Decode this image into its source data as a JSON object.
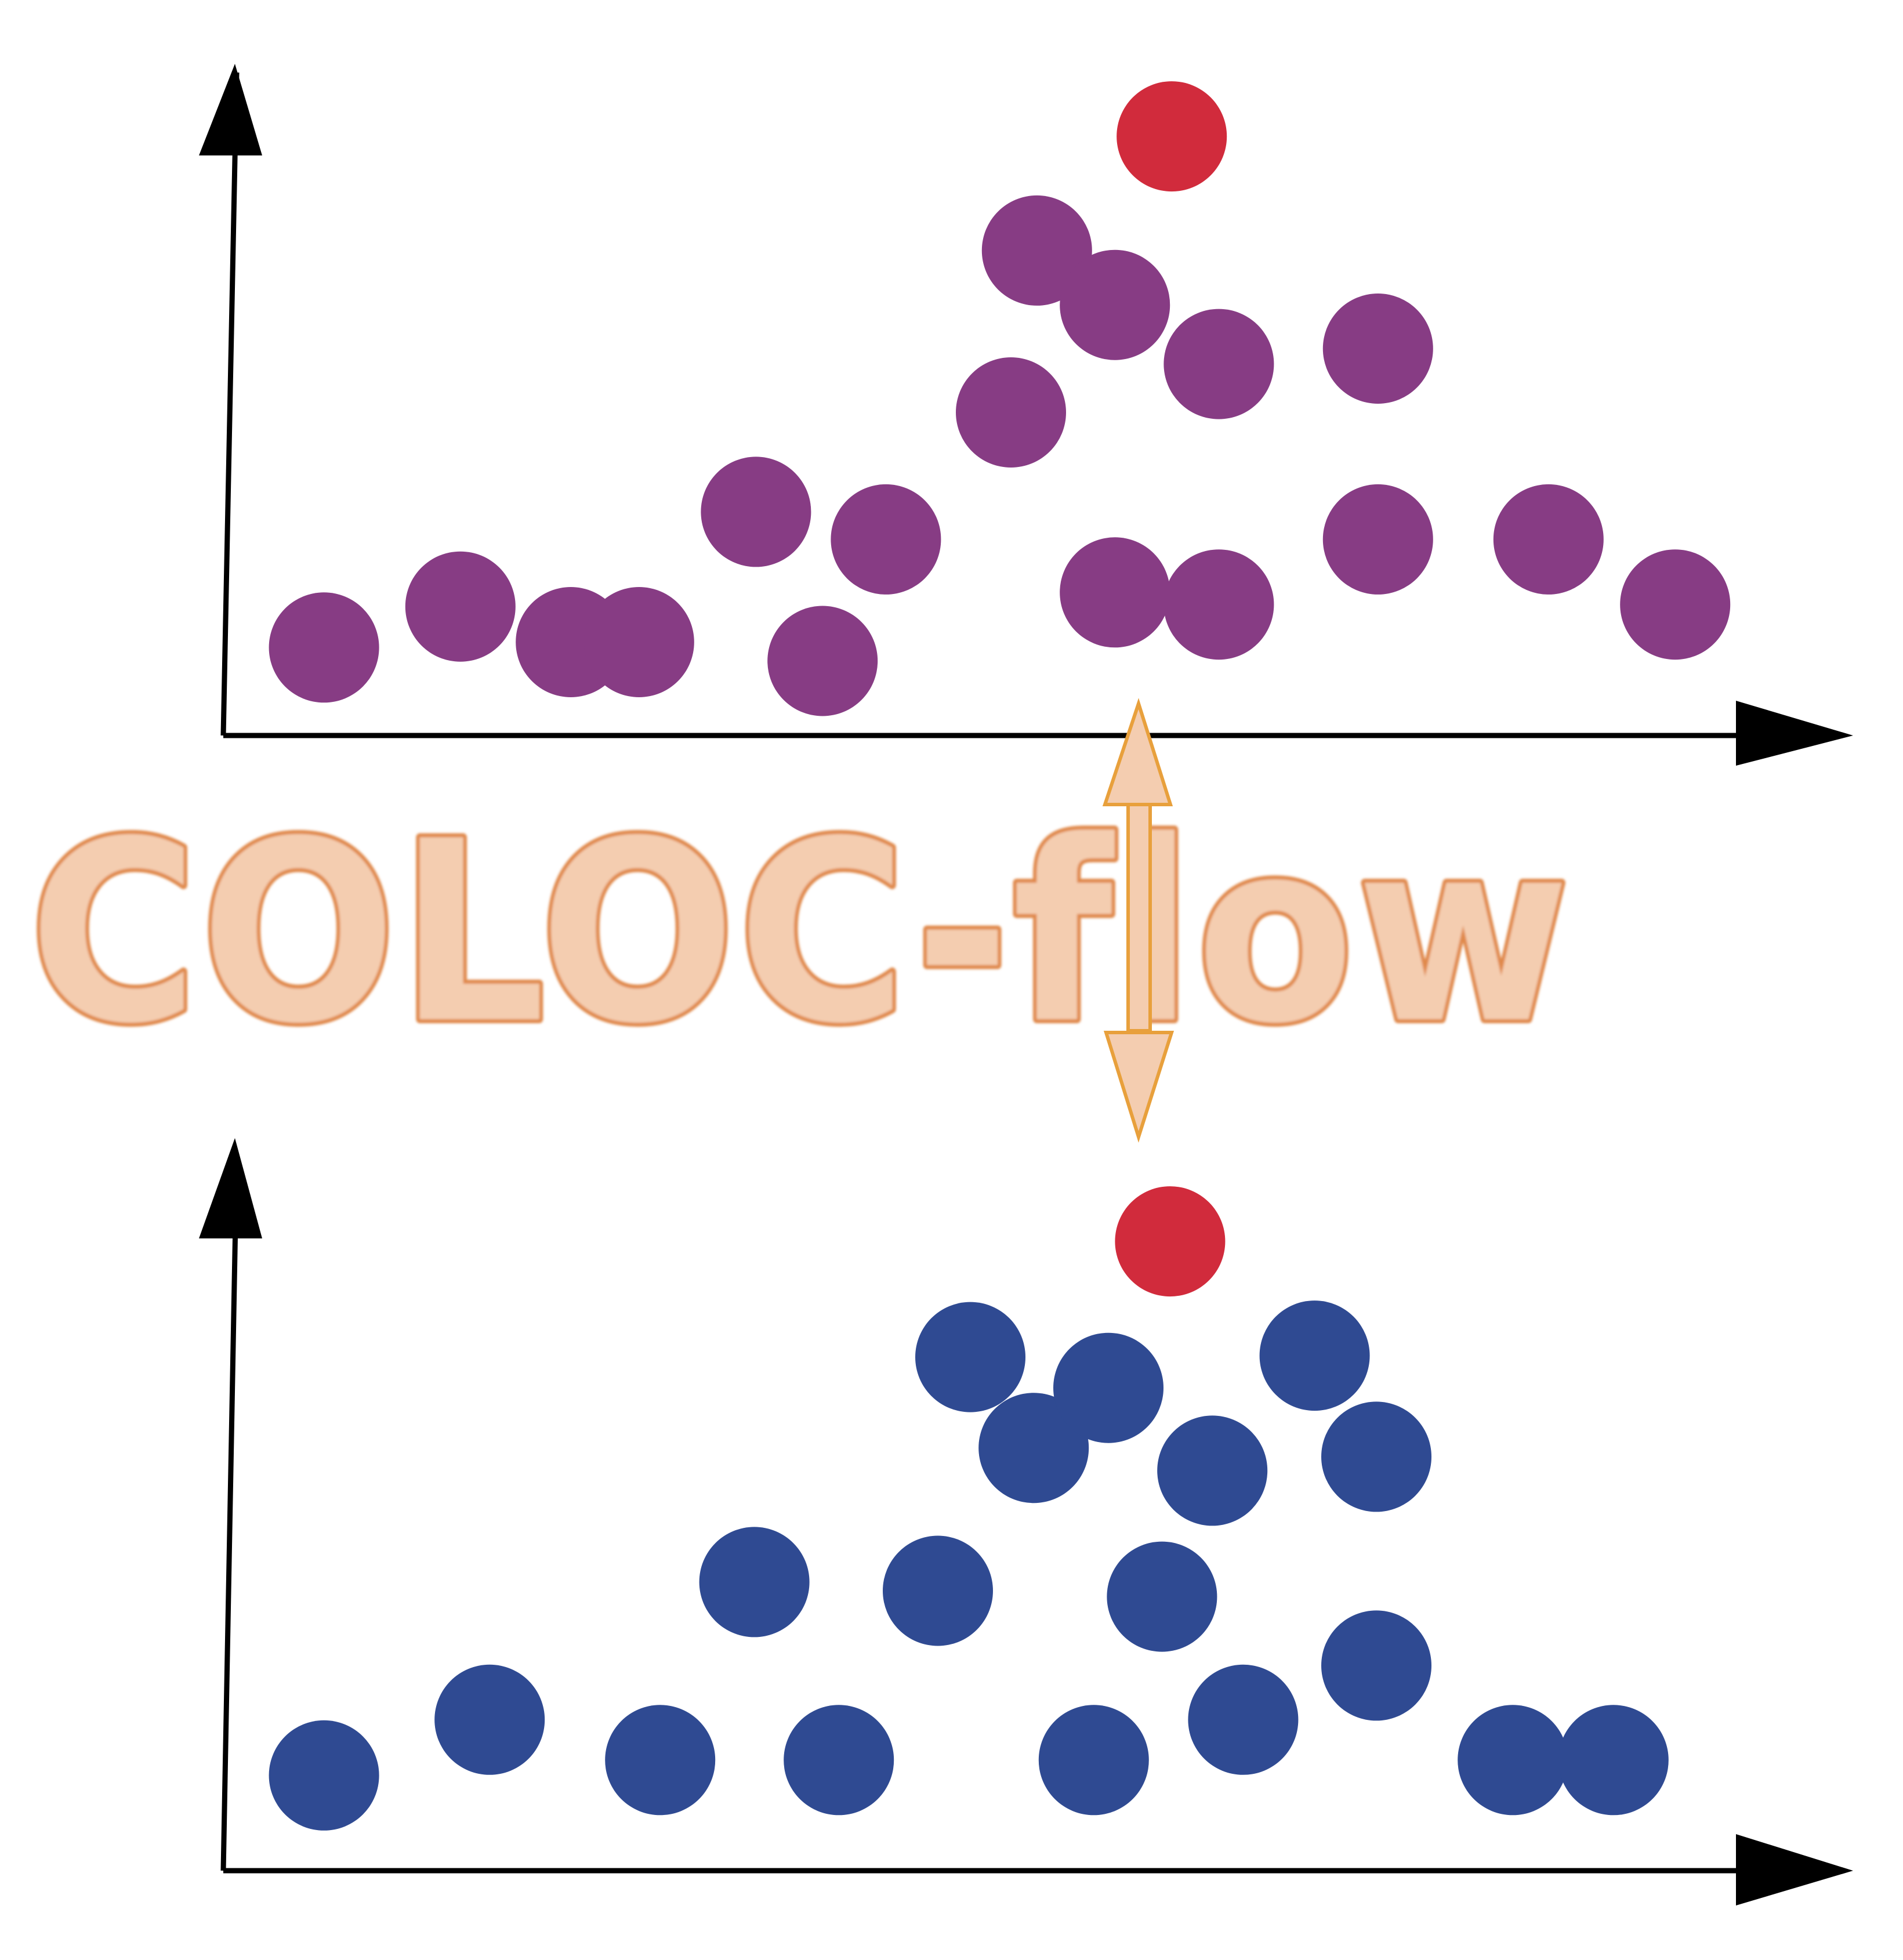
{
  "title_text": "COLOC-flow",
  "colors": {
    "axis": "#000000",
    "top_series": "#873c84",
    "bottom_series": "#2f4a92",
    "highlight": "#d12b3c",
    "text_fill": "#f4cdb0",
    "text_stroke": "#e0894c",
    "connector_fill": "#f4cdb0",
    "connector_stroke": "#e8a03c"
  },
  "chart_data": [
    {
      "type": "scatter",
      "title": "",
      "xlabel": "",
      "ylabel": "",
      "xlim": [
        0,
        100
      ],
      "ylim": [
        0,
        100
      ],
      "grid": false,
      "series": [
        {
          "color": "#873c84",
          "points": [
            [
              6.2,
              13.1
            ],
            [
              14.6,
              19.2
            ],
            [
              21.4,
              13.9
            ],
            [
              25.6,
              13.9
            ],
            [
              32.8,
              33.3
            ],
            [
              36.9,
              11.1
            ],
            [
              40.8,
              29.2
            ],
            [
              48.5,
              48.1
            ],
            [
              50.1,
              72.2
            ],
            [
              54.9,
              64.1
            ],
            [
              54.9,
              21.3
            ],
            [
              61.3,
              55.3
            ],
            [
              61.3,
              19.5
            ],
            [
              71.1,
              57.6
            ],
            [
              71.1,
              29.2
            ],
            [
              81.6,
              29.2
            ],
            [
              89.4,
              19.5
            ]
          ]
        },
        {
          "color": "#d12b3c",
          "points": [
            [
              58.4,
              89.2
            ]
          ]
        }
      ]
    },
    {
      "type": "scatter",
      "title": "",
      "xlabel": "",
      "ylabel": "",
      "xlim": [
        0,
        100
      ],
      "ylim": [
        0,
        100
      ],
      "grid": false,
      "series": [
        {
          "color": "#2f4a92",
          "points": [
            [
              6.2,
              13.0
            ],
            [
              16.4,
              20.6
            ],
            [
              26.9,
              15.1
            ],
            [
              32.7,
              39.4
            ],
            [
              37.9,
              15.1
            ],
            [
              44.0,
              38.2
            ],
            [
              46.0,
              70.1
            ],
            [
              49.9,
              57.7
            ],
            [
              53.6,
              15.1
            ],
            [
              54.5,
              65.9
            ],
            [
              57.8,
              37.4
            ],
            [
              60.9,
              54.6
            ],
            [
              62.8,
              20.6
            ],
            [
              67.2,
              70.3
            ],
            [
              71.0,
              56.5
            ],
            [
              71.0,
              28.0
            ],
            [
              79.4,
              15.1
            ],
            [
              85.6,
              15.1
            ]
          ]
        },
        {
          "color": "#d12b3c",
          "points": [
            [
              58.3,
              85.9
            ]
          ]
        }
      ]
    }
  ]
}
